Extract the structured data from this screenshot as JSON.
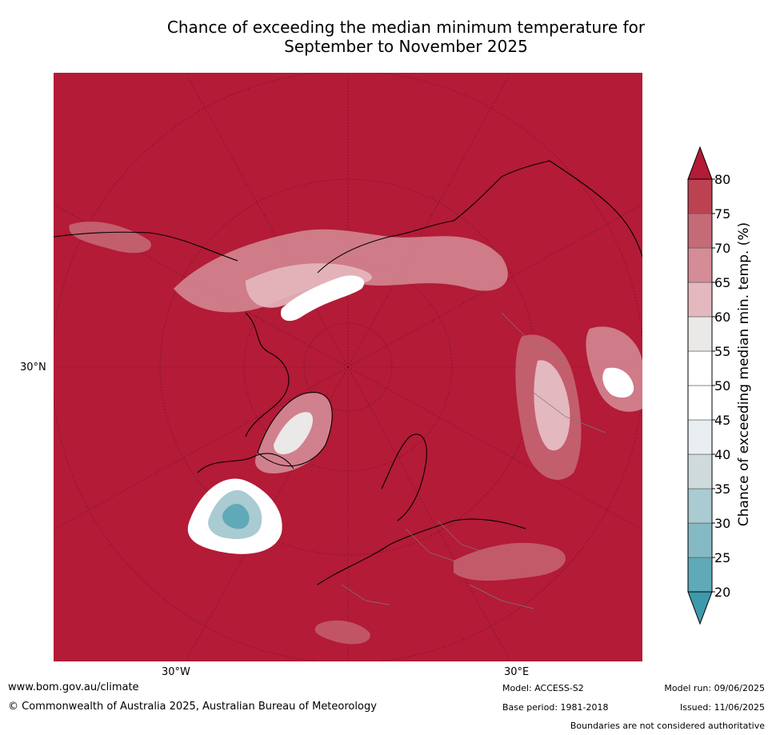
{
  "title": {
    "line1": "Chance of exceeding the median minimum temperature for",
    "line2": "September to November 2025"
  },
  "map": {
    "projection": "north-polar-stereographic",
    "background_color": "#b31b37",
    "lat_labels": [
      "30°N"
    ],
    "lon_labels": [
      "30°W",
      "30°E"
    ]
  },
  "colorbar": {
    "title": "Chance of exceeding median min. temp. (%)",
    "ticks": [
      "20",
      "25",
      "30",
      "35",
      "40",
      "45",
      "50",
      "55",
      "60",
      "65",
      "70",
      "75",
      "80"
    ],
    "colors": [
      "#5fa9b8",
      "#85b9c4",
      "#a9cbd1",
      "#cfdadd",
      "#e9eef1",
      "#ffffff",
      "#ffffff",
      "#ebe8e8",
      "#e4b8bf",
      "#d48c97",
      "#c56a77",
      "#bc4252",
      "#b31b37"
    ],
    "under_color": "#3d9aab",
    "over_color": "#b31b37"
  },
  "footer": {
    "url": "www.bom.gov.au/climate",
    "copyright": "© Commonwealth of Australia 2025, Australian Bureau of Meteorology",
    "model": "Model: ACCESS-S2",
    "base_period": "Base period: 1981-2018",
    "model_run": "Model run: 09/06/2025",
    "issued": "Issued: 11/06/2025",
    "disclaimer": "Boundaries are not considered authoritative"
  }
}
